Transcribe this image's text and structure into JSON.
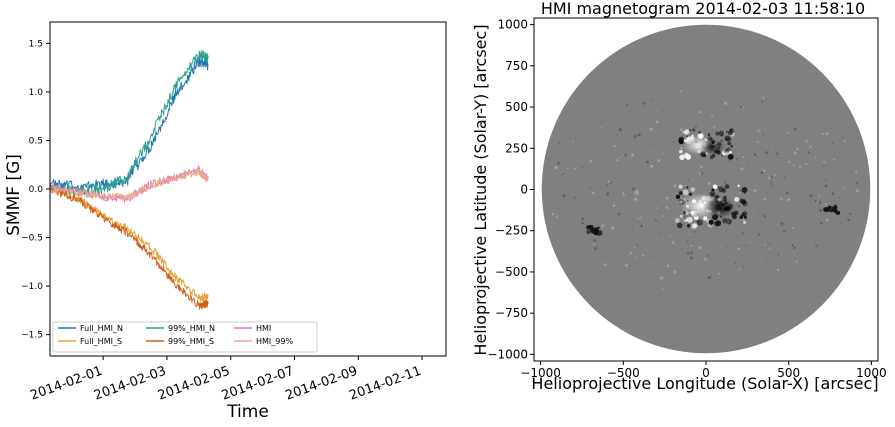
{
  "chart_data": [
    {
      "type": "line",
      "title": "",
      "xlabel": "Time",
      "ylabel": "SMMF [G]",
      "x_tick_labels": [
        "2014-02-01",
        "2014-02-03",
        "2014-02-05",
        "2014-02-07",
        "2014-02-09",
        "2014-02-11"
      ],
      "x_tick_dates": [
        "2014-02-01",
        "2014-02-03",
        "2014-02-05",
        "2014-02-07",
        "2014-02-09",
        "2014-02-11"
      ],
      "xlim": [
        "2014-01-30T08:00",
        "2014-02-11T18:00"
      ],
      "y_ticks": [
        -1.5,
        -1.0,
        -0.5,
        0.0,
        0.5,
        1.0,
        1.5
      ],
      "y_tick_labels": [
        "−1.5",
        "−1.0",
        "−0.5",
        "0.0",
        "0.5",
        "1.0",
        "1.5"
      ],
      "ylim": [
        -1.72,
        1.72
      ],
      "grid": false,
      "legend_position": "lower-left",
      "legend_columns": 3,
      "series": [
        {
          "name": "Full_HMI_N",
          "color": "#1f77b4",
          "x": [
            "2014-01-30T08:00",
            "2014-01-31T06:00",
            "2014-02-01T00:00",
            "2014-02-01T18:00",
            "2014-02-02T12:00",
            "2014-02-03T06:00",
            "2014-02-04T00:00",
            "2014-02-04T07:00"
          ],
          "y": [
            0.05,
            0.02,
            0.05,
            0.08,
            0.45,
            0.95,
            1.32,
            1.28
          ]
        },
        {
          "name": "Full_HMI_S",
          "color": "#e8a33a",
          "x": [
            "2014-01-30T08:00",
            "2014-01-31T06:00",
            "2014-02-01T00:00",
            "2014-02-01T18:00",
            "2014-02-02T12:00",
            "2014-02-03T06:00",
            "2014-02-04T00:00",
            "2014-02-04T07:00"
          ],
          "y": [
            0.0,
            -0.1,
            -0.28,
            -0.4,
            -0.6,
            -0.9,
            -1.12,
            -1.1
          ]
        },
        {
          "name": "99%_HMI_N",
          "color": "#2ca08a",
          "x": [
            "2014-01-30T08:00",
            "2014-01-31T06:00",
            "2014-02-01T00:00",
            "2014-02-01T18:00",
            "2014-02-02T12:00",
            "2014-02-03T06:00",
            "2014-02-04T00:00",
            "2014-02-04T07:00"
          ],
          "y": [
            0.03,
            -0.03,
            0.0,
            0.12,
            0.55,
            1.05,
            1.38,
            1.35
          ]
        },
        {
          "name": "99%_HMI_S",
          "color": "#d2601a",
          "x": [
            "2014-01-30T08:00",
            "2014-01-31T06:00",
            "2014-02-01T00:00",
            "2014-02-01T18:00",
            "2014-02-02T12:00",
            "2014-02-03T06:00",
            "2014-02-04T00:00",
            "2014-02-04T07:00"
          ],
          "y": [
            0.0,
            -0.12,
            -0.3,
            -0.45,
            -0.68,
            -0.98,
            -1.2,
            -1.18
          ]
        },
        {
          "name": "HMI",
          "color": "#e377c2",
          "x": [
            "2014-01-30T08:00",
            "2014-01-31T06:00",
            "2014-02-01T00:00",
            "2014-02-01T18:00",
            "2014-02-02T12:00",
            "2014-02-03T06:00",
            "2014-02-04T00:00",
            "2014-02-04T07:00"
          ],
          "y": [
            0.02,
            -0.03,
            -0.08,
            -0.1,
            0.05,
            0.12,
            0.2,
            0.1
          ]
        },
        {
          "name": "HMI_99%",
          "color": "#e8a98a",
          "x": [
            "2014-01-30T08:00",
            "2014-01-31T06:00",
            "2014-02-01T00:00",
            "2014-02-01T18:00",
            "2014-02-02T12:00",
            "2014-02-03T06:00",
            "2014-02-04T00:00",
            "2014-02-04T07:00"
          ],
          "y": [
            0.01,
            -0.04,
            -0.07,
            -0.09,
            0.04,
            0.11,
            0.18,
            0.09
          ]
        }
      ]
    },
    {
      "type": "heatmap",
      "title": "HMI magnetogram 2014-02-03 11:58:10",
      "xlabel": "Helioprojective Longitude (Solar-X) [arcsec]",
      "ylabel": "Helioprojective Latitude (Solar-Y) [arcsec]",
      "xlim": [
        -1040,
        1040
      ],
      "ylim": [
        -1040,
        1040
      ],
      "x_ticks": [
        -1000,
        -500,
        0,
        500,
        1000
      ],
      "x_tick_labels": [
        "−1000",
        "−500",
        "0",
        "500",
        "1000"
      ],
      "y_ticks": [
        -1000,
        -750,
        -500,
        -250,
        0,
        250,
        500,
        750,
        1000
      ],
      "y_tick_labels": [
        "−1000",
        "−750",
        "−500",
        "−250",
        "0",
        "250",
        "500",
        "750",
        "1000"
      ],
      "colormap": "grayscale",
      "disk_color": "#808080",
      "solar_radius_arcsec": 975,
      "active_regions": [
        {
          "x": 0,
          "y": 270,
          "size": 60,
          "polarity": "bipolar"
        },
        {
          "x": 30,
          "y": -100,
          "size": 80,
          "polarity": "bipolar"
        },
        {
          "x": 760,
          "y": -120,
          "size": 15,
          "polarity": "negative"
        },
        {
          "x": -680,
          "y": -240,
          "size": 15,
          "polarity": "negative"
        }
      ]
    }
  ]
}
